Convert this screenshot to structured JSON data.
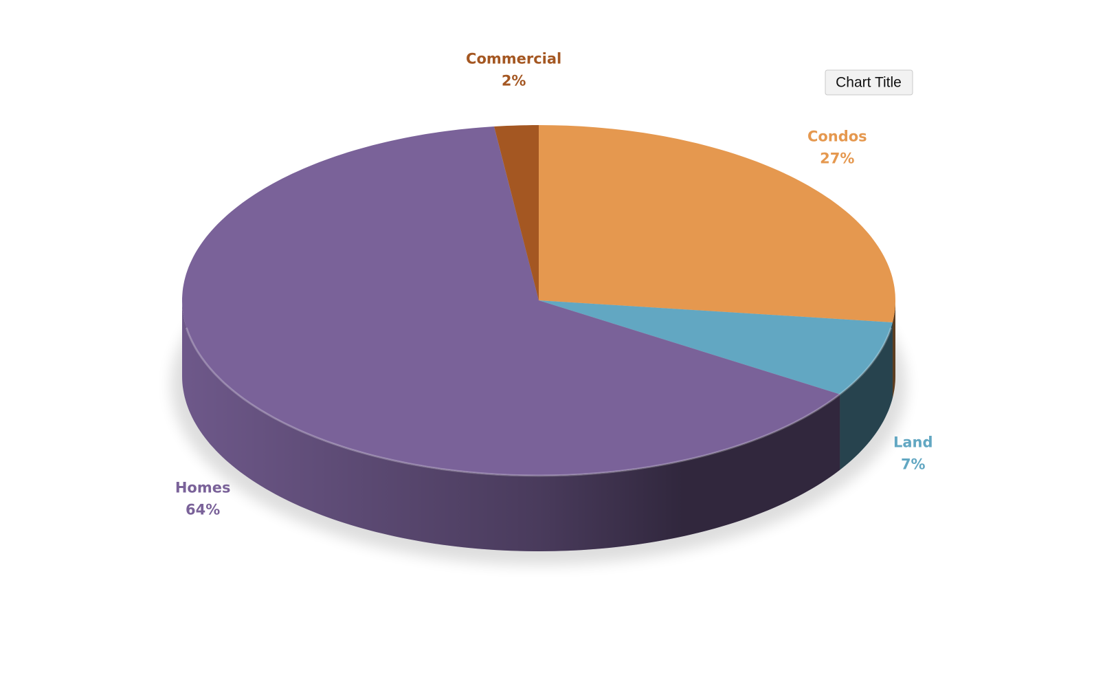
{
  "chart_data": {
    "type": "pie",
    "title": "Chart Title",
    "categories": [
      "Condos",
      "Land",
      "Homes",
      "Commercial"
    ],
    "values": [
      27,
      7,
      64,
      2
    ],
    "value_labels": [
      "27%",
      "7%",
      "64%",
      "2%"
    ],
    "colors": [
      "#e5984f",
      "#62a7c2",
      "#7a6299",
      "#a45722"
    ]
  }
}
